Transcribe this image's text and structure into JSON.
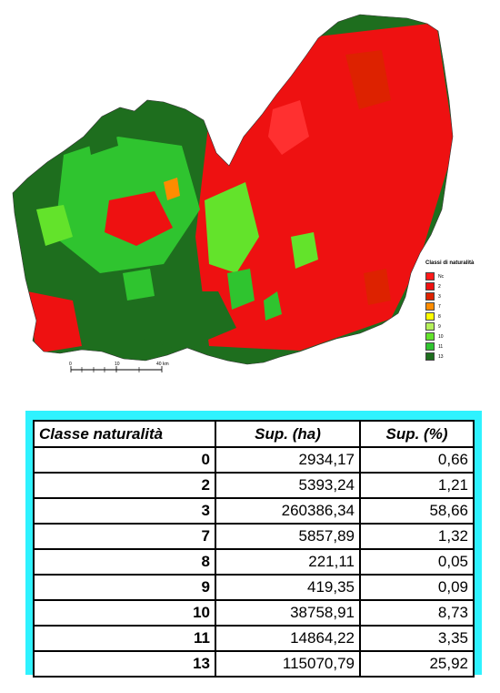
{
  "map": {
    "scalebar": {
      "label_0": "0",
      "label_mid": "10",
      "label_end": "40 km"
    },
    "legend": {
      "title": "Classi di naturalità",
      "items": [
        {
          "label": "Nc",
          "color": "#ff1a1a"
        },
        {
          "label": "2",
          "color": "#ee1111"
        },
        {
          "label": "3",
          "color": "#dd2200"
        },
        {
          "label": "7",
          "color": "#ff8c00"
        },
        {
          "label": "8",
          "color": "#ffff00"
        },
        {
          "label": "9",
          "color": "#b5f05a"
        },
        {
          "label": "10",
          "color": "#63e32b"
        },
        {
          "label": "11",
          "color": "#2fc42f"
        },
        {
          "label": "13",
          "color": "#1e6e1e"
        }
      ]
    }
  },
  "table": {
    "headers": [
      "Classe naturalità",
      "Sup. (ha)",
      "Sup. (%)"
    ],
    "rows": [
      [
        "0",
        "2934,17",
        "0,66"
      ],
      [
        "2",
        "5393,24",
        "1,21"
      ],
      [
        "3",
        "260386,34",
        "58,66"
      ],
      [
        "7",
        "5857,89",
        "1,32"
      ],
      [
        "8",
        "221,11",
        "0,05"
      ],
      [
        "9",
        "419,35",
        "0,09"
      ],
      [
        "10",
        "38758,91",
        "8,73"
      ],
      [
        "11",
        "14864,22",
        "3,35"
      ],
      [
        "13",
        "115070,79",
        "25,92"
      ]
    ]
  }
}
